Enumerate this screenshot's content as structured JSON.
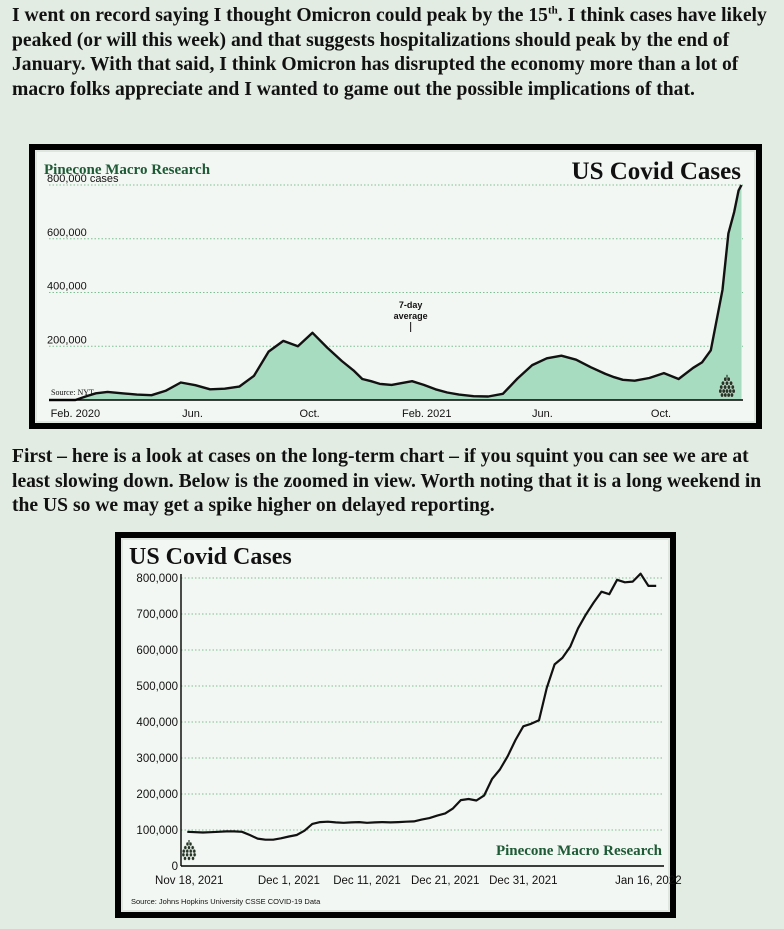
{
  "paragraph1": {
    "before_sup": "I went on record saying I thought Omicron could peak by the 15",
    "sup": "th",
    "after_sup": ". I think cases have likely peaked (or will this week) and that suggests hospitalizations should peak by the end of January. With that said, I think Omicron has disrupted the economy more than a lot of macro folks appreciate and I wanted to game out the possible implications of that."
  },
  "paragraph2": "First – here is a look at cases on the long-term chart – if you squint you can see we are at least slowing down. Below is the zoomed in view. Worth noting that it is a long weekend in the US so we may get a spike higher on delayed reporting.",
  "colors": {
    "background": "#e3ece3",
    "fill": "#a8dcc0",
    "line": "#111111",
    "brand": "#1e5a36",
    "grid": "#7dbf92"
  },
  "chart_data": [
    {
      "type": "area",
      "title": "US Covid Cases",
      "brand": "Pinecone Macro Research",
      "source": "Source: NYT",
      "annotation": "7-day average",
      "icon": "pinecone-icon",
      "xlabels": [
        "Feb. 2020",
        "Jun.",
        "Oct.",
        "Feb. 2021",
        "Jun.",
        "Oct."
      ],
      "ytick_labels": [
        "800,000 cases",
        "600,000",
        "400,000",
        "200,000"
      ],
      "yticks": [
        800000,
        600000,
        400000,
        200000
      ],
      "ylim": [
        0,
        800000
      ],
      "xlim": [
        0,
        23.7
      ],
      "grid": true,
      "x": [
        0,
        0.9,
        1.3,
        1.6,
        2,
        2.5,
        3,
        3.5,
        4,
        4.5,
        5,
        5.5,
        6,
        6.5,
        7,
        7.5,
        8,
        8.5,
        9,
        9.5,
        10,
        10.4,
        10.7,
        11,
        11.3,
        11.7,
        12,
        12.4,
        12.8,
        13.2,
        13.6,
        14,
        14.5,
        15,
        15.5,
        16,
        16.5,
        17,
        17.5,
        18,
        18.5,
        19,
        19.3,
        19.6,
        20,
        20.5,
        21,
        21.5,
        22,
        22.3,
        22.6,
        23,
        23.2,
        23.4,
        23.55,
        23.65
      ],
      "y": [
        0,
        0,
        15000,
        25000,
        30000,
        25000,
        20000,
        18000,
        35000,
        65000,
        55000,
        40000,
        42000,
        50000,
        90000,
        180000,
        220000,
        200000,
        250000,
        195000,
        145000,
        110000,
        78000,
        70000,
        60000,
        56000,
        62000,
        70000,
        56000,
        40000,
        28000,
        20000,
        14000,
        13000,
        23000,
        80000,
        130000,
        155000,
        165000,
        150000,
        122000,
        97000,
        85000,
        75000,
        72000,
        82000,
        100000,
        78000,
        120000,
        140000,
        185000,
        410000,
        620000,
        700000,
        780000,
        800000
      ]
    },
    {
      "type": "line",
      "title": "US Covid Cases",
      "brand": "Pinecone Macro Research",
      "source": "Source: Johns Hopkins University CSSE COVID-19 Data",
      "icon": "pinecone-icon",
      "xlabels": [
        "Nov 18, 2021",
        "Dec 1, 2021",
        "Dec 11, 2021",
        "Dec 21, 2021",
        "Dec 31, 2021",
        "Jan 16, 2022"
      ],
      "xtick_days": [
        0,
        13,
        23,
        33,
        43,
        59
      ],
      "ytick_labels": [
        "800,000",
        "700,000",
        "600,000",
        "500,000",
        "400,000",
        "300,000",
        "200,000",
        "100,000",
        "0"
      ],
      "yticks": [
        800000,
        700000,
        600000,
        500000,
        400000,
        300000,
        200000,
        100000,
        0
      ],
      "ylim": [
        0,
        800000
      ],
      "xlim": [
        -0.8,
        61
      ],
      "grid": true,
      "x": [
        0,
        2,
        3,
        4,
        5,
        6,
        7,
        8,
        9,
        10,
        11,
        12,
        13,
        14,
        15,
        16,
        17,
        18,
        19,
        20,
        21,
        22,
        23,
        24,
        25,
        26,
        27,
        28,
        29,
        30,
        31,
        32,
        33,
        34,
        35,
        36,
        37,
        38,
        39,
        40,
        41,
        42,
        43,
        44,
        45,
        46,
        47,
        48,
        49,
        50,
        51,
        52,
        53,
        54,
        55,
        56,
        57,
        58,
        59,
        60
      ],
      "y": [
        95000,
        93000,
        94000,
        95000,
        96000,
        96000,
        95000,
        86000,
        76000,
        73000,
        73000,
        77000,
        82000,
        86000,
        98000,
        117000,
        122000,
        123000,
        121000,
        120000,
        121000,
        122000,
        120000,
        121000,
        122000,
        121000,
        122000,
        123000,
        124000,
        129000,
        133000,
        140000,
        146000,
        160000,
        183000,
        186000,
        182000,
        196000,
        242000,
        268000,
        305000,
        350000,
        388000,
        395000,
        405000,
        495000,
        560000,
        578000,
        609000,
        660000,
        698000,
        732000,
        762000,
        755000,
        795000,
        788000,
        790000,
        812000,
        778000,
        778000
      ]
    }
  ]
}
